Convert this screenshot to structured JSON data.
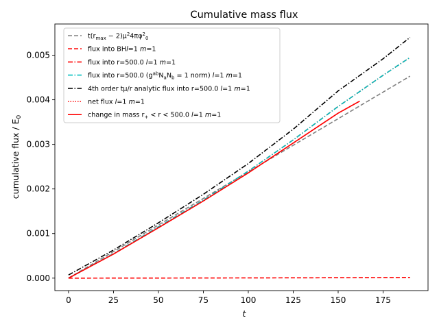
{
  "chart_data": {
    "type": "line",
    "title": "Cumulative mass flux",
    "xlabel": "t",
    "ylabel": "cumulative flux / E",
    "ylabel_sub": "0",
    "xlim": [
      -7.6,
      200
    ],
    "ylim": [
      -0.00028,
      0.0057
    ],
    "xticks": [
      0,
      25,
      50,
      75,
      100,
      125,
      150,
      175
    ],
    "yticks": [
      0.0,
      0.001,
      0.002,
      0.003,
      0.004,
      0.005
    ],
    "xtick_labels": [
      "0",
      "25",
      "50",
      "75",
      "100",
      "125",
      "150",
      "175"
    ],
    "ytick_labels": [
      "0.000",
      "0.001",
      "0.002",
      "0.003",
      "0.004",
      "0.005"
    ],
    "grid": false,
    "legend_position": "upper-left",
    "series": [
      {
        "name": "t(r_max − 2)μ²4πφ₀²",
        "legend_parts": [
          [
            "t(",
            ""
          ],
          [
            "r",
            ""
          ],
          [
            "max",
            "sub"
          ],
          [
            " − 2)",
            ""
          ],
          [
            "μ",
            ""
          ],
          [
            "2",
            "sup"
          ],
          [
            "4π",
            ""
          ],
          [
            "φ",
            ""
          ],
          [
            "2",
            "sup"
          ],
          [
            "0",
            "sub"
          ]
        ],
        "color": "#808080",
        "dash": "6,3",
        "x": [
          0,
          190
        ],
        "y": [
          0.0,
          0.00453
        ]
      },
      {
        "name": "flux into BH l=1 m=1",
        "legend_parts": [
          [
            "flux into BH",
            ""
          ],
          [
            "l",
            "it"
          ],
          [
            "=1 ",
            ""
          ],
          [
            "m",
            "it"
          ],
          [
            "=1",
            ""
          ]
        ],
        "color": "#ff0000",
        "dash": "6,3",
        "x": [
          0,
          50,
          100,
          150,
          190
        ],
        "y": [
          0.0,
          2e-06,
          5e-06,
          9e-06,
          1.5e-05
        ]
      },
      {
        "name": "flux into r=500.0 l=1 m=1",
        "legend_parts": [
          [
            "flux into r=500.0 ",
            ""
          ],
          [
            "l",
            "it"
          ],
          [
            "=1 ",
            ""
          ],
          [
            "m",
            "it"
          ],
          [
            "=1",
            ""
          ]
        ],
        "color": "#ff0000",
        "dash": "7,2.5,1.5,2.5",
        "x": [
          0,
          25,
          50,
          75,
          100,
          125,
          150,
          175,
          190
        ],
        "y": [
          0.0,
          0.00055,
          0.00115,
          0.00175,
          0.0024,
          0.0031,
          0.00385,
          0.00455,
          0.00495
        ]
      },
      {
        "name": "flux into r=500.0 (g^ab N_a N_b = 1 norm) l=1 m=1",
        "legend_parts": [
          [
            "flux into r=500.0 (",
            ""
          ],
          [
            "g",
            ""
          ],
          [
            "ab",
            "sup"
          ],
          [
            "N",
            ""
          ],
          [
            "a",
            "sub"
          ],
          [
            "N",
            ""
          ],
          [
            "b",
            "sub"
          ],
          [
            " = 1 norm) ",
            ""
          ],
          [
            "l",
            "it"
          ],
          [
            "=1 ",
            ""
          ],
          [
            "m",
            "it"
          ],
          [
            "=1",
            ""
          ]
        ],
        "color": "#00bfbf",
        "dash": "7,2.5,1.5,2.5",
        "x": [
          0,
          25,
          50,
          75,
          100,
          125,
          150,
          175,
          190
        ],
        "y": [
          0.0,
          0.00055,
          0.00115,
          0.00175,
          0.0024,
          0.0031,
          0.00385,
          0.00455,
          0.00495
        ]
      },
      {
        "name": "4th order tμ/r analytic flux into r=500.0 l=1 m=1",
        "legend_parts": [
          [
            "4th order tμ/r analytic flux into r=500.0 ",
            ""
          ],
          [
            "l",
            "it"
          ],
          [
            "=1 ",
            ""
          ],
          [
            "m",
            "it"
          ],
          [
            "=1",
            ""
          ]
        ],
        "color": "#000000",
        "dash": "7,2.5,1.5,2.5",
        "x": [
          0,
          25,
          50,
          75,
          100,
          125,
          150,
          175,
          190
        ],
        "y": [
          7e-05,
          0.00063,
          0.00124,
          0.00188,
          0.00257,
          0.00334,
          0.0042,
          0.00492,
          0.0054
        ]
      },
      {
        "name": "net flux l=1 m=1",
        "legend_parts": [
          [
            "net flux ",
            ""
          ],
          [
            "l",
            "it"
          ],
          [
            "=1 ",
            ""
          ],
          [
            "m",
            "it"
          ],
          [
            "=1",
            ""
          ]
        ],
        "color": "#ff0000",
        "dash": "1.5,2",
        "x": [
          0,
          25,
          50,
          75,
          100,
          125,
          150,
          162
        ],
        "y": [
          0.0,
          0.00054,
          0.00113,
          0.00173,
          0.00236,
          0.00303,
          0.0037,
          0.00397
        ]
      },
      {
        "name": "change in mass r+ < r < 500.0 l=1 m=1",
        "legend_parts": [
          [
            "change in mass ",
            ""
          ],
          [
            "r",
            ""
          ],
          [
            "+",
            "sub"
          ],
          [
            " < ",
            ""
          ],
          [
            "r",
            ""
          ],
          [
            " < 500.0 ",
            ""
          ],
          [
            "l",
            "it"
          ],
          [
            "=1 ",
            ""
          ],
          [
            "m",
            "it"
          ],
          [
            "=1",
            ""
          ]
        ],
        "color": "#ff0000",
        "dash": "",
        "x": [
          0,
          25,
          50,
          75,
          100,
          125,
          150,
          162
        ],
        "y": [
          0.0,
          0.00054,
          0.00113,
          0.00173,
          0.00236,
          0.00303,
          0.0037,
          0.00397
        ]
      }
    ]
  }
}
